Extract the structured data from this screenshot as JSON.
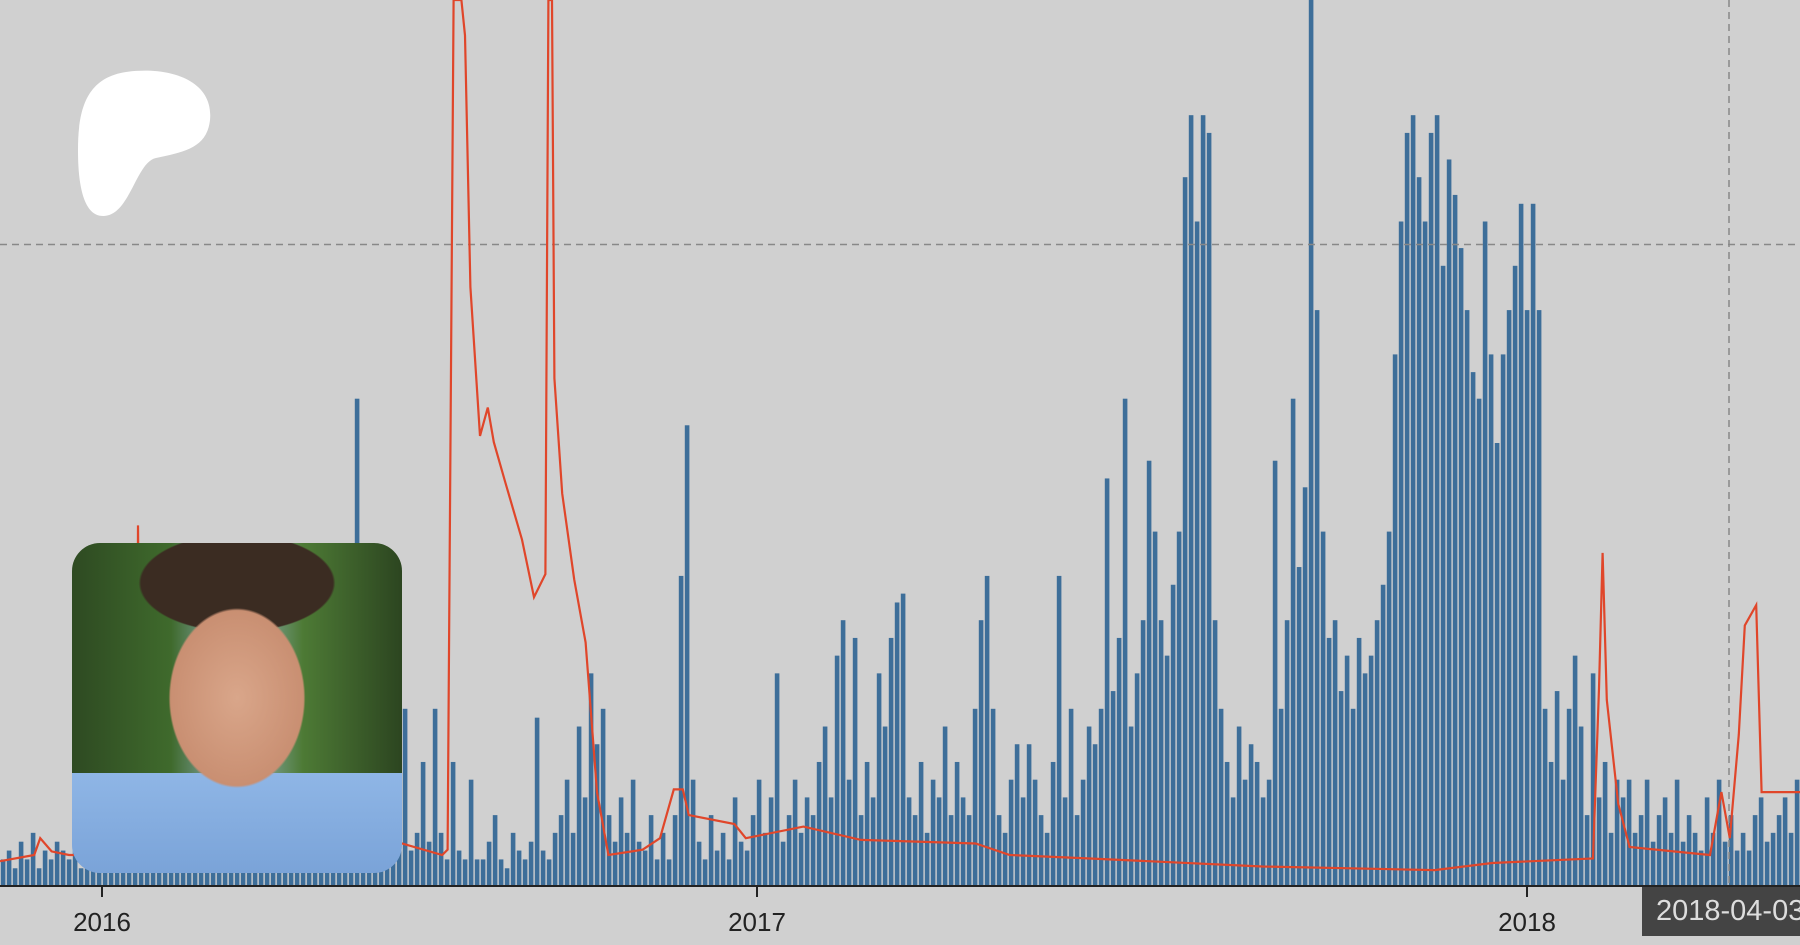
{
  "colors": {
    "background": "#d0d0d0",
    "bars": "#3d6e99",
    "line": "#e0462a",
    "axis": "#222222",
    "guide": "#888888",
    "tooltip_bg": "#444444"
  },
  "logo": {
    "name": "patreon-logo",
    "icon": "blob-shape",
    "color": "#ffffff"
  },
  "photo": {
    "name": "creator-avatar"
  },
  "tooltip": {
    "label": "2018-04-03"
  },
  "chart_data": {
    "type": "bar",
    "title": "",
    "xlabel": "",
    "ylabel": "",
    "ylim": [
      0,
      100
    ],
    "grid": false,
    "x_tick_labels": [
      "2016",
      "2017",
      "2018"
    ],
    "guide_lines": {
      "horizontal_value": 72.4,
      "vertical_at_bar": 288
    },
    "bars": [
      3,
      4,
      2,
      5,
      3,
      6,
      2,
      4,
      3,
      5,
      4,
      3,
      6,
      2,
      5,
      3,
      4,
      2,
      6,
      3,
      3,
      5,
      2,
      4,
      6,
      3,
      2,
      5,
      4,
      3,
      4,
      2,
      5,
      3,
      6,
      4,
      2,
      5,
      3,
      4,
      3,
      5,
      4,
      2,
      6,
      3,
      5,
      2,
      4,
      3,
      5,
      3,
      4,
      6,
      2,
      4,
      5,
      3,
      6,
      55,
      4,
      6,
      3,
      8,
      5,
      3,
      12,
      20,
      4,
      6,
      14,
      5,
      20,
      6,
      3,
      14,
      4,
      3,
      12,
      3,
      3,
      5,
      8,
      3,
      2,
      6,
      4,
      3,
      5,
      19,
      4,
      3,
      6,
      8,
      12,
      6,
      18,
      10,
      24,
      16,
      20,
      8,
      5,
      10,
      6,
      12,
      5,
      4,
      8,
      3,
      6,
      3,
      8,
      35,
      52,
      12,
      5,
      3,
      8,
      4,
      6,
      3,
      10,
      5,
      4,
      8,
      12,
      6,
      10,
      24,
      5,
      8,
      12,
      6,
      10,
      8,
      14,
      18,
      10,
      26,
      30,
      12,
      28,
      8,
      14,
      10,
      24,
      18,
      28,
      32,
      33,
      10,
      8,
      14,
      6,
      12,
      10,
      18,
      8,
      14,
      10,
      8,
      20,
      30,
      35,
      20,
      8,
      6,
      12,
      16,
      10,
      16,
      12,
      8,
      6,
      14,
      35,
      10,
      20,
      8,
      12,
      18,
      16,
      20,
      46,
      22,
      28,
      55,
      18,
      24,
      30,
      48,
      40,
      30,
      26,
      34,
      40,
      80,
      87,
      75,
      87,
      85,
      30,
      20,
      14,
      10,
      18,
      12,
      16,
      14,
      10,
      12,
      48,
      20,
      30,
      55,
      36,
      45,
      100,
      65,
      40,
      28,
      30,
      22,
      26,
      20,
      28,
      24,
      26,
      30,
      34,
      40,
      60,
      75,
      85,
      87,
      80,
      75,
      85,
      87,
      70,
      82,
      78,
      72,
      65,
      58,
      55,
      75,
      60,
      50,
      60,
      65,
      70,
      77,
      65,
      77,
      65,
      20,
      14,
      22,
      12,
      20,
      26,
      18,
      8,
      24,
      10,
      14,
      6,
      12,
      10,
      12,
      6,
      8,
      12,
      5,
      8,
      10,
      6,
      12,
      5,
      8,
      6,
      4,
      10,
      6,
      12,
      5,
      8,
      4,
      6,
      4,
      8,
      10,
      5,
      6,
      8,
      10,
      6,
      12
    ],
    "line": [
      [
        0,
        2.8
      ],
      [
        5.7,
        3.5
      ],
      [
        6.7,
        5.4
      ],
      [
        8.6,
        3.9
      ],
      [
        11.5,
        3.5
      ],
      [
        22.8,
        3.5
      ],
      [
        23,
        40.7
      ],
      [
        23.5,
        3.5
      ],
      [
        67,
        4.8
      ],
      [
        73.7,
        3.5
      ],
      [
        74.6,
        4.1
      ],
      [
        75.6,
        100
      ],
      [
        76.9,
        100
      ],
      [
        77.5,
        96
      ],
      [
        78.4,
        67.6
      ],
      [
        80,
        50.8
      ],
      [
        81.3,
        54
      ],
      [
        82.3,
        50.1
      ],
      [
        84.2,
        45.6
      ],
      [
        87,
        39.1
      ],
      [
        89,
        32.6
      ],
      [
        90.9,
        35.2
      ],
      [
        91.4,
        100
      ],
      [
        92,
        100
      ],
      [
        92.4,
        57.3
      ],
      [
        93.7,
        44.3
      ],
      [
        95.7,
        34.6
      ],
      [
        97.6,
        27.5
      ],
      [
        99.5,
        10.6
      ],
      [
        101.4,
        3.5
      ],
      [
        107.1,
        4.1
      ],
      [
        110,
        5.4
      ],
      [
        112.3,
        10.9
      ],
      [
        113.8,
        10.9
      ],
      [
        114.8,
        8
      ],
      [
        122.4,
        7
      ],
      [
        124.3,
        5.4
      ],
      [
        133.9,
        6.7
      ],
      [
        143.5,
        5.2
      ],
      [
        162.6,
        4.8
      ],
      [
        168.3,
        3.5
      ],
      [
        181.7,
        3.1
      ],
      [
        210.4,
        2.2
      ],
      [
        239.1,
        1.8
      ],
      [
        248.7,
        2.6
      ],
      [
        265.5,
        3.1
      ],
      [
        266.5,
        22.3
      ],
      [
        267.1,
        37.6
      ],
      [
        267.8,
        21
      ],
      [
        269.7,
        9.3
      ],
      [
        271.6,
        4.4
      ],
      [
        285,
        3.5
      ],
      [
        286.9,
        10.6
      ],
      [
        288.3,
        5.4
      ],
      [
        289.8,
        17.1
      ],
      [
        290.8,
        29.4
      ],
      [
        292.7,
        31.7
      ],
      [
        293.6,
        10.6
      ],
      [
        300,
        10.6
      ]
    ]
  }
}
